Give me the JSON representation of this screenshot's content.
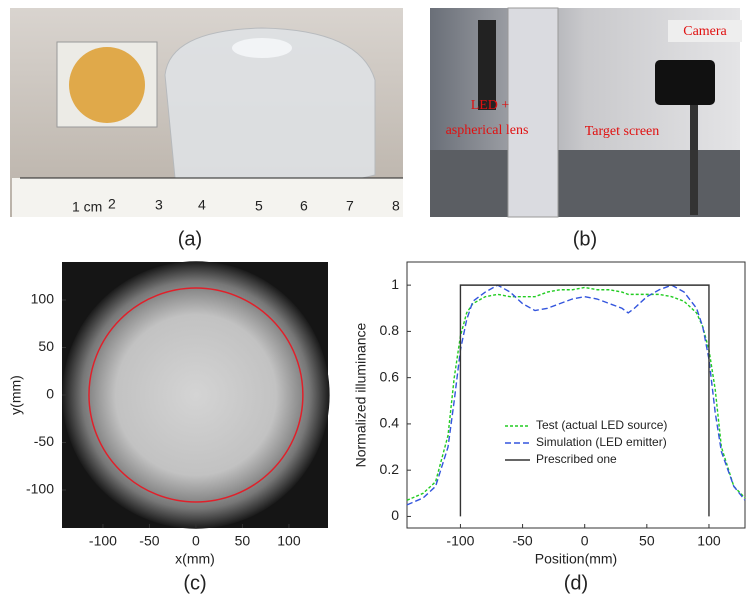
{
  "photos": [
    {
      "label": "(a)",
      "ruler_labels": [
        "1 cm",
        "2",
        "3",
        "4",
        "5",
        "6",
        "7",
        "8"
      ]
    },
    {
      "label": "(b)",
      "annotations": [
        "Camera",
        "LED +",
        "aspherical lens",
        "Target screen"
      ]
    }
  ],
  "chart_data": [
    {
      "type": "image",
      "label": "(c)",
      "xlabel": "x(mm)",
      "ylabel": "y(mm)",
      "xlim": [
        -144,
        142
      ],
      "ylim": [
        -140,
        140
      ],
      "xticks": [
        -100,
        -50,
        0,
        50,
        100
      ],
      "yticks": [
        -100,
        -50,
        0,
        50,
        100
      ],
      "circle": {
        "radius": 115,
        "color": "#e0202a"
      }
    },
    {
      "type": "line",
      "label": "(d)",
      "xlabel": "Position(mm)",
      "ylabel": "Normalized illuminance",
      "xlim": [
        -143,
        129
      ],
      "ylim": [
        -0.05,
        1.1
      ],
      "xticks": [
        -100,
        -50,
        0,
        50,
        100
      ],
      "yticks": [
        0,
        0.2,
        0.4,
        0.6,
        0.8,
        1
      ],
      "series": [
        {
          "name": "Test (actual LED source)",
          "color": "#22cc22",
          "dash": "3,2",
          "x": [
            -143,
            -130,
            -120,
            -110,
            -105,
            -100,
            -95,
            -90,
            -80,
            -70,
            -60,
            -50,
            -40,
            -30,
            -20,
            -10,
            0,
            10,
            20,
            30,
            35,
            40,
            50,
            60,
            70,
            80,
            90,
            95,
            100,
            105,
            110,
            120,
            129
          ],
          "values": [
            0.07,
            0.1,
            0.15,
            0.35,
            0.6,
            0.78,
            0.88,
            0.92,
            0.95,
            0.96,
            0.95,
            0.95,
            0.95,
            0.97,
            0.98,
            0.98,
            0.99,
            0.98,
            0.98,
            0.97,
            0.96,
            0.96,
            0.96,
            0.96,
            0.95,
            0.93,
            0.88,
            0.82,
            0.72,
            0.55,
            0.3,
            0.13,
            0.08
          ]
        },
        {
          "name": "Simulation (LED emitter)",
          "color": "#3355dd",
          "dash": "6,3",
          "x": [
            -143,
            -130,
            -120,
            -110,
            -105,
            -100,
            -95,
            -90,
            -80,
            -70,
            -60,
            -50,
            -40,
            -30,
            -20,
            -10,
            0,
            10,
            20,
            30,
            35,
            40,
            50,
            60,
            70,
            80,
            90,
            95,
            100,
            105,
            110,
            120,
            129
          ],
          "values": [
            0.05,
            0.08,
            0.13,
            0.3,
            0.5,
            0.72,
            0.85,
            0.93,
            0.97,
            1.0,
            0.97,
            0.92,
            0.89,
            0.9,
            0.92,
            0.94,
            0.95,
            0.94,
            0.92,
            0.9,
            0.88,
            0.9,
            0.95,
            0.98,
            1.0,
            0.97,
            0.9,
            0.82,
            0.68,
            0.45,
            0.28,
            0.13,
            0.07
          ]
        },
        {
          "name": "Prescribed one",
          "color": "#333333",
          "dash": "none",
          "x": [
            -100,
            -100,
            100,
            100
          ],
          "values": [
            0,
            1,
            1,
            0
          ]
        }
      ]
    }
  ]
}
